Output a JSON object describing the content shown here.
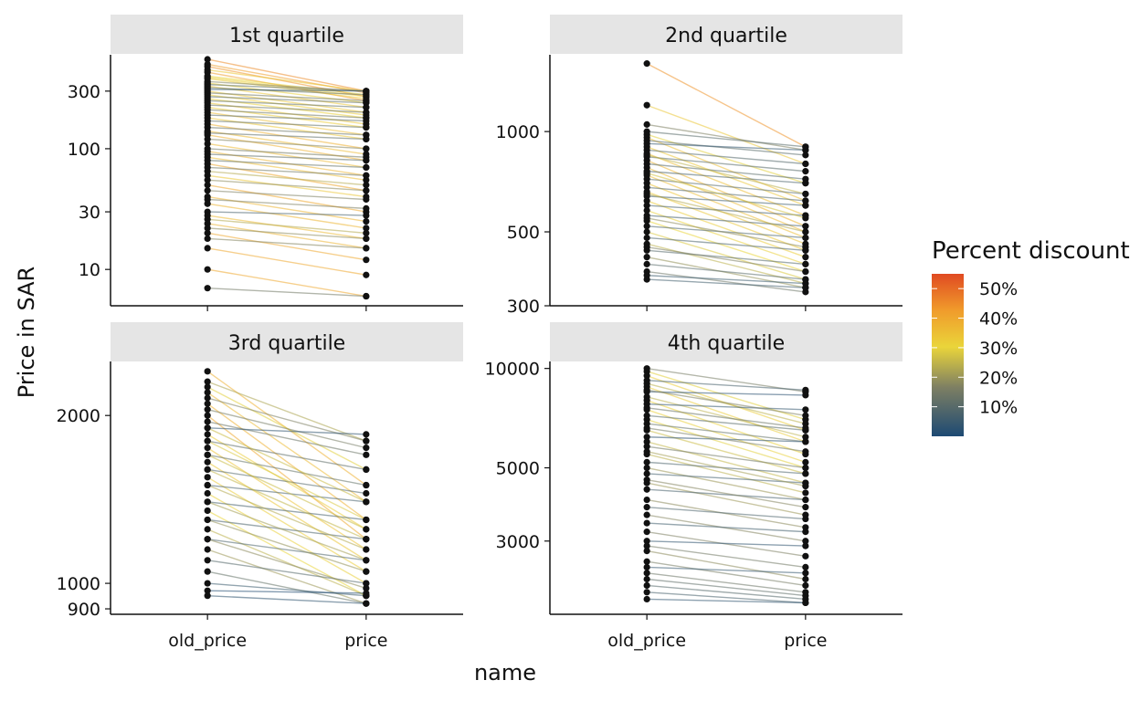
{
  "chart_data": {
    "type": "line",
    "subtype": "paired-slope-faceted",
    "title": "",
    "xlabel": "name",
    "ylabel": "Price in SAR",
    "x_categories": [
      "old_price",
      "price"
    ],
    "y_scale": "log10",
    "legend": {
      "title": "Percent discount",
      "placement": "right",
      "labels": [
        "50%",
        "40%",
        "30%",
        "20%",
        "10%"
      ],
      "gradient_colors": [
        "#1d4a73",
        "#7d7f63",
        "#ead53a",
        "#f09a2b",
        "#e04a22"
      ],
      "range": [
        0,
        55
      ]
    },
    "panels": [
      {
        "title": "1st quartile",
        "ylim": [
          5,
          600
        ],
        "y_ticks": [
          10,
          30,
          100,
          300
        ],
        "y_tick_labels": [
          "10",
          "30",
          "100",
          "300"
        ],
        "pairs": [
          [
            550,
            300,
            45
          ],
          [
            500,
            290,
            42
          ],
          [
            480,
            270,
            44
          ],
          [
            450,
            300,
            33
          ],
          [
            430,
            250,
            42
          ],
          [
            400,
            280,
            30
          ],
          [
            390,
            270,
            31
          ],
          [
            380,
            260,
            32
          ],
          [
            360,
            300,
            17
          ],
          [
            350,
            240,
            31
          ],
          [
            340,
            300,
            12
          ],
          [
            330,
            220,
            33
          ],
          [
            320,
            280,
            12
          ],
          [
            310,
            300,
            3
          ],
          [
            300,
            200,
            33
          ],
          [
            290,
            250,
            14
          ],
          [
            280,
            190,
            32
          ],
          [
            270,
            240,
            11
          ],
          [
            260,
            180,
            31
          ],
          [
            250,
            220,
            12
          ],
          [
            240,
            160,
            33
          ],
          [
            230,
            200,
            13
          ],
          [
            220,
            150,
            32
          ],
          [
            210,
            180,
            14
          ],
          [
            200,
            130,
            35
          ],
          [
            190,
            170,
            11
          ],
          [
            180,
            120,
            33
          ],
          [
            170,
            150,
            12
          ],
          [
            160,
            100,
            38
          ],
          [
            150,
            130,
            13
          ],
          [
            140,
            90,
            36
          ],
          [
            135,
            120,
            11
          ],
          [
            130,
            80,
            38
          ],
          [
            120,
            100,
            17
          ],
          [
            110,
            70,
            36
          ],
          [
            100,
            85,
            15
          ],
          [
            95,
            60,
            37
          ],
          [
            90,
            80,
            11
          ],
          [
            85,
            55,
            35
          ],
          [
            80,
            70,
            12
          ],
          [
            75,
            45,
            40
          ],
          [
            70,
            60,
            14
          ],
          [
            65,
            50,
            23
          ],
          [
            60,
            40,
            33
          ],
          [
            55,
            45,
            18
          ],
          [
            50,
            30,
            40
          ],
          [
            45,
            38,
            16
          ],
          [
            40,
            25,
            37
          ],
          [
            38,
            32,
            16
          ],
          [
            35,
            22,
            37
          ],
          [
            30,
            28,
            7
          ],
          [
            28,
            18,
            36
          ],
          [
            26,
            20,
            23
          ],
          [
            24,
            15,
            37
          ],
          [
            22,
            18,
            18
          ],
          [
            20,
            12,
            40
          ],
          [
            18,
            15,
            17
          ],
          [
            15,
            9,
            40
          ],
          [
            10,
            6,
            40
          ],
          [
            7,
            6,
            14
          ]
        ]
      },
      {
        "title": "2nd quartile",
        "ylim": [
          300,
          1700
        ],
        "y_ticks": [
          300,
          500,
          1000
        ],
        "y_tick_labels": [
          "300",
          "500",
          "1000"
        ],
        "pairs": [
          [
            1600,
            900,
            44
          ],
          [
            1200,
            800,
            33
          ],
          [
            1050,
            880,
            16
          ],
          [
            1000,
            900,
            10
          ],
          [
            980,
            700,
            29
          ],
          [
            960,
            620,
            35
          ],
          [
            940,
            850,
            10
          ],
          [
            920,
            880,
            4
          ],
          [
            900,
            600,
            33
          ],
          [
            880,
            800,
            9
          ],
          [
            860,
            560,
            35
          ],
          [
            840,
            760,
            10
          ],
          [
            820,
            520,
            37
          ],
          [
            800,
            720,
            10
          ],
          [
            780,
            500,
            36
          ],
          [
            760,
            700,
            8
          ],
          [
            740,
            480,
            35
          ],
          [
            720,
            650,
            10
          ],
          [
            700,
            460,
            34
          ],
          [
            680,
            620,
            9
          ],
          [
            660,
            440,
            33
          ],
          [
            640,
            600,
            6
          ],
          [
            620,
            420,
            32
          ],
          [
            600,
            560,
            7
          ],
          [
            580,
            400,
            31
          ],
          [
            560,
            520,
            7
          ],
          [
            540,
            380,
            30
          ],
          [
            520,
            480,
            8
          ],
          [
            500,
            360,
            28
          ],
          [
            480,
            440,
            8
          ],
          [
            460,
            350,
            24
          ],
          [
            440,
            400,
            9
          ],
          [
            420,
            340,
            19
          ],
          [
            400,
            360,
            10
          ],
          [
            380,
            330,
            13
          ],
          [
            370,
            350,
            5
          ],
          [
            360,
            340,
            6
          ],
          [
            850,
            650,
            24
          ],
          [
            750,
            550,
            27
          ],
          [
            650,
            500,
            23
          ],
          [
            550,
            450,
            18
          ],
          [
            450,
            380,
            16
          ]
        ]
      },
      {
        "title": "3rd quartile",
        "ylim": [
          880,
          2500
        ],
        "y_ticks": [
          900,
          1000,
          2000
        ],
        "y_tick_labels": [
          "900",
          "1000",
          "2000"
        ],
        "pairs": [
          [
            2400,
            1500,
            38
          ],
          [
            2300,
            1800,
            22
          ],
          [
            2250,
            1600,
            29
          ],
          [
            2200,
            1400,
            36
          ],
          [
            2150,
            1800,
            16
          ],
          [
            2100,
            1300,
            38
          ],
          [
            2050,
            1750,
            15
          ],
          [
            2000,
            1200,
            40
          ],
          [
            1950,
            1700,
            13
          ],
          [
            1900,
            1850,
            3
          ],
          [
            1850,
            1250,
            32
          ],
          [
            1800,
            1600,
            11
          ],
          [
            1750,
            1150,
            34
          ],
          [
            1700,
            1500,
            12
          ],
          [
            1650,
            1100,
            33
          ],
          [
            1600,
            1450,
            9
          ],
          [
            1550,
            1050,
            32
          ],
          [
            1500,
            1400,
            7
          ],
          [
            1450,
            1000,
            31
          ],
          [
            1400,
            1300,
            7
          ],
          [
            1350,
            950,
            30
          ],
          [
            1300,
            1200,
            8
          ],
          [
            1250,
            950,
            24
          ],
          [
            1200,
            1100,
            8
          ],
          [
            1150,
            920,
            20
          ],
          [
            1100,
            1000,
            9
          ],
          [
            1050,
            920,
            12
          ],
          [
            1000,
            950,
            5
          ],
          [
            970,
            960,
            1
          ],
          [
            950,
            920,
            3
          ],
          [
            1900,
            1400,
            26
          ],
          [
            1800,
            1300,
            28
          ],
          [
            1700,
            1250,
            26
          ],
          [
            1600,
            1200,
            25
          ],
          [
            1500,
            1150,
            23
          ],
          [
            1400,
            1100,
            21
          ],
          [
            1300,
            1050,
            19
          ],
          [
            1200,
            980,
            18
          ]
        ]
      },
      {
        "title": "4th quartile",
        "ylim": [
          1800,
          10500
        ],
        "y_ticks": [
          3000,
          5000,
          10000
        ],
        "y_tick_labels": [
          "3000",
          "5000",
          "10000"
        ],
        "pairs": [
          [
            10000,
            8500,
            15
          ],
          [
            9800,
            7000,
            29
          ],
          [
            9500,
            6500,
            32
          ],
          [
            9200,
            8600,
            7
          ],
          [
            9000,
            6800,
            24
          ],
          [
            8800,
            6000,
            32
          ],
          [
            8500,
            8300,
            2
          ],
          [
            8200,
            6200,
            24
          ],
          [
            8000,
            5500,
            31
          ],
          [
            7800,
            7500,
            4
          ],
          [
            7500,
            5200,
            31
          ],
          [
            7200,
            6500,
            10
          ],
          [
            7000,
            5000,
            29
          ],
          [
            6800,
            6000,
            12
          ],
          [
            6500,
            4800,
            26
          ],
          [
            6200,
            6000,
            3
          ],
          [
            6000,
            4500,
            25
          ],
          [
            5800,
            5000,
            14
          ],
          [
            5500,
            4200,
            24
          ],
          [
            5200,
            4800,
            8
          ],
          [
            5000,
            4000,
            20
          ],
          [
            4800,
            4500,
            6
          ],
          [
            4500,
            3600,
            20
          ],
          [
            4300,
            4000,
            7
          ],
          [
            4000,
            3300,
            18
          ],
          [
            3800,
            3500,
            8
          ],
          [
            3600,
            3000,
            17
          ],
          [
            3400,
            3200,
            6
          ],
          [
            3200,
            2700,
            16
          ],
          [
            3000,
            2900,
            3
          ],
          [
            2900,
            2500,
            14
          ],
          [
            2800,
            2300,
            18
          ],
          [
            2600,
            2200,
            15
          ],
          [
            2500,
            2400,
            4
          ],
          [
            2400,
            2100,
            13
          ],
          [
            2300,
            2050,
            11
          ],
          [
            2200,
            2000,
            9
          ],
          [
            2100,
            1950,
            7
          ],
          [
            2000,
            1950,
            3
          ],
          [
            8600,
            7200,
            16
          ],
          [
            7600,
            6600,
            13
          ],
          [
            6600,
            5600,
            15
          ],
          [
            5600,
            4400,
            21
          ],
          [
            4600,
            3800,
            17
          ]
        ]
      }
    ]
  }
}
